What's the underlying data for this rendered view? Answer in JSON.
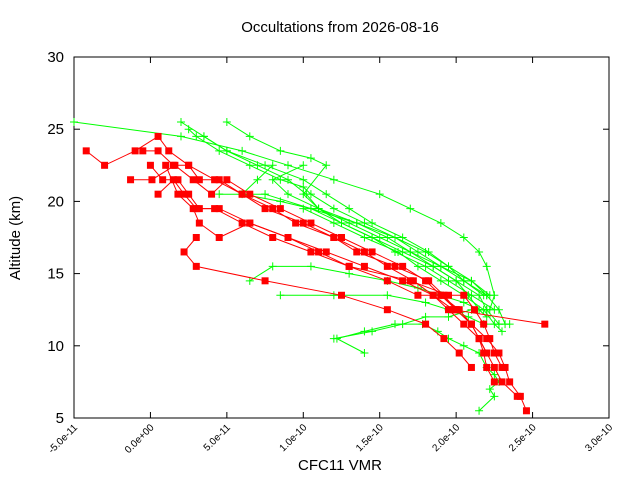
{
  "chart_data": {
    "type": "line",
    "title": "Occultations from 2026-08-16",
    "xlabel": "CFC11 VMR",
    "ylabel": "Altitude (km)",
    "xlim": [
      -5e-11,
      3e-10
    ],
    "ylim": [
      5,
      30
    ],
    "x_ticks": [
      -5e-11,
      0,
      5e-11,
      1e-10,
      1.5e-10,
      2e-10,
      2.5e-10,
      3e-10
    ],
    "x_tick_labels": [
      "-5.0e-11",
      "0.0e+00",
      "5.0e-11",
      "1.0e-10",
      "1.5e-10",
      "2.0e-10",
      "2.5e-10",
      "3.0e-10"
    ],
    "y_ticks": [
      5,
      10,
      15,
      20,
      25,
      30
    ],
    "y_tick_labels": [
      "5",
      "10",
      "15",
      "20",
      "25",
      "30"
    ],
    "grid": false,
    "legend": "none",
    "series": [
      {
        "style": "red-squares",
        "color": "#ff0000",
        "marker": "square",
        "x": [
          2.46e-10,
          2.42e-10,
          2.35e-10,
          2.32e-10,
          2.28e-10,
          2.2e-10,
          2.1e-10,
          2e-10,
          1.92e-10,
          1.82e-10,
          1.6e-10,
          1.35e-10,
          1.2e-10,
          1e-10,
          7.5e-11,
          6e-11,
          4.2e-11,
          2.5e-11,
          1.2e-11,
          5e-12,
          -1e-11,
          -3e-11,
          -4.2e-11
        ],
        "y": [
          5.5,
          6.5,
          7.5,
          8.5,
          9.5,
          10.5,
          11.5,
          12.5,
          13.5,
          14.5,
          15.5,
          16.5,
          17.5,
          18.5,
          19.5,
          20.5,
          21.5,
          22.5,
          23.5,
          24.5,
          23.5,
          22.5,
          23.5
        ]
      },
      {
        "style": "red-squares",
        "color": "#ff0000",
        "marker": "square",
        "x": [
          2.4e-10,
          2.3e-10,
          2.25e-10,
          2.2e-10,
          2.15e-10,
          2.05e-10,
          1.95e-10,
          1.85e-10,
          1.72e-10,
          1.55e-10,
          1.4e-10,
          1.2e-10,
          9.5e-11,
          8e-11,
          6e-11,
          4.5e-11,
          3.2e-11,
          2.5e-11,
          1.5e-11,
          5e-12,
          -5e-12
        ],
        "y": [
          6.5,
          7.5,
          8.5,
          9.5,
          10.5,
          11.5,
          12.5,
          13.5,
          14.5,
          15.5,
          16.5,
          17.5,
          18.5,
          19.5,
          20.5,
          21.5,
          21.5,
          22.5,
          22.5,
          23.5,
          23.5
        ]
      },
      {
        "style": "red-squares",
        "color": "#ff0000",
        "marker": "square",
        "x": [
          2.25e-10,
          2.2e-10,
          2.18e-10,
          2.15e-10,
          2.1e-10,
          2.02e-10,
          1.9e-10,
          1.8e-10,
          1.65e-10,
          1.45e-10,
          1.25e-10,
          1.05e-10,
          8.5e-11,
          6.5e-11,
          5e-11,
          4e-11,
          2.8e-11,
          1.6e-11,
          1e-12,
          -1.3e-11
        ],
        "y": [
          7.5,
          8.5,
          9.5,
          10.5,
          11.5,
          12.5,
          13.5,
          14.5,
          15.5,
          16.5,
          17.5,
          18.5,
          19.5,
          20.5,
          21.5,
          20.5,
          21.5,
          22.5,
          21.5,
          21.5
        ]
      },
      {
        "style": "red-squares",
        "color": "#ff0000",
        "marker": "square",
        "x": [
          2.3e-10,
          2.25e-10,
          2.22e-10,
          2.18e-10,
          2.12e-10,
          2.05e-10,
          1.95e-10,
          1.7e-10,
          1.3e-10,
          1.1e-10,
          9e-11,
          6.5e-11,
          4.5e-11,
          3.2e-11,
          2.5e-11,
          1.8e-11,
          8e-12,
          0
        ],
        "y": [
          8.5,
          9.5,
          10.5,
          11.5,
          12.5,
          13.5,
          13.5,
          14.5,
          15.5,
          16.5,
          17.5,
          18.5,
          19.5,
          19.5,
          20.5,
          21.5,
          21.5,
          22.5
        ]
      },
      {
        "style": "red-squares",
        "color": "#ff0000",
        "marker": "square",
        "x": [
          2.2e-10,
          2.15e-10,
          2.1e-10,
          2e-10,
          1.9e-10,
          1.75e-10,
          1.55e-10,
          1.3e-10,
          1.05e-10,
          8e-11,
          6e-11,
          4.2e-11,
          3e-11,
          2.2e-11,
          1.5e-11,
          5e-12
        ],
        "y": [
          9.5,
          10.5,
          11.5,
          12.5,
          13.5,
          13.5,
          14.5,
          15.5,
          16.5,
          17.5,
          18.5,
          19.5,
          19.5,
          20.5,
          21.5,
          20.5
        ]
      },
      {
        "style": "red-squares",
        "color": "#ff0000",
        "marker": "square",
        "x": [
          2.58e-10,
          1.98e-10,
          1.85e-10,
          1.65e-10,
          1.4e-10,
          1.15e-10,
          9e-11,
          6.5e-11,
          4.5e-11,
          3.2e-11,
          2.8e-11,
          1.8e-11,
          1e-11
        ],
        "y": [
          11.5,
          12.5,
          13.5,
          14.5,
          15.5,
          16.5,
          17.5,
          18.5,
          17.5,
          18.5,
          19.5,
          20.5,
          22.5
        ]
      },
      {
        "style": "red-squares",
        "color": "#ff0000",
        "marker": "square",
        "x": [
          2.1e-10,
          2.02e-10,
          1.92e-10,
          1.8e-10,
          1.55e-10,
          1.25e-10,
          7.5e-11,
          3e-11,
          2.2e-11,
          3e-11
        ],
        "y": [
          8.5,
          9.5,
          10.5,
          11.5,
          12.5,
          13.5,
          14.5,
          15.5,
          16.5,
          17.5
        ]
      },
      {
        "style": "green-crosses",
        "color": "#00ff00",
        "marker": "plus",
        "x": [
          -5e-11,
          2e-11,
          6e-11,
          9e-11,
          1.2e-10,
          1.5e-10,
          1.7e-10,
          1.9e-10,
          2.05e-10,
          2.15e-10,
          2.2e-10,
          2.25e-10,
          2.22e-10
        ],
        "y": [
          25.5,
          24.5,
          23.5,
          22.5,
          21.5,
          20.5,
          19.5,
          18.5,
          17.5,
          16.5,
          15.5,
          13.5,
          12.5
        ]
      },
      {
        "style": "green-crosses",
        "color": "#00ff00",
        "marker": "plus",
        "x": [
          5e-11,
          6.5e-11,
          8.5e-11,
          1.05e-10,
          1.15e-10,
          1e-10,
          1.1e-10,
          1.3e-10,
          1.5e-10,
          1.7e-10,
          1.9e-10,
          2.1e-10,
          2.2e-10,
          2.28e-10,
          2.32e-10
        ],
        "y": [
          25.5,
          24.5,
          23.5,
          23.0,
          22.5,
          20.5,
          19.5,
          18.5,
          17.5,
          16.5,
          15.5,
          14.5,
          13.5,
          12.5,
          11.5
        ]
      },
      {
        "style": "green-crosses",
        "color": "#00ff00",
        "marker": "plus",
        "x": [
          2e-11,
          3.5e-11,
          5e-11,
          7e-11,
          9e-11,
          1.02e-10,
          1.1e-10,
          1.25e-10,
          1.45e-10,
          1.65e-10,
          1.85e-10,
          2e-10,
          2.08e-10,
          2.15e-10
        ],
        "y": [
          25.5,
          24.5,
          23.5,
          22.5,
          21.5,
          20.5,
          19.5,
          18.5,
          17.5,
          16.5,
          15.5,
          14.5,
          13.5,
          12.5
        ]
      },
      {
        "style": "green-crosses",
        "color": "#00ff00",
        "marker": "plus",
        "x": [
          2.5e-11,
          3e-11,
          4.5e-11,
          6.5e-11,
          8.5e-11,
          1e-10,
          1.05e-10,
          1.2e-10,
          1.4e-10,
          1.6e-10,
          1.75e-10,
          1.9e-10,
          2.05e-10,
          2.2e-10
        ],
        "y": [
          25.0,
          24.5,
          23.5,
          22.5,
          21.5,
          21.0,
          20.5,
          19.5,
          18.5,
          17.5,
          16.5,
          15.5,
          14.5,
          13.5
        ]
      },
      {
        "style": "green-crosses",
        "color": "#00ff00",
        "marker": "plus",
        "x": [
          3.5e-11,
          5e-11,
          7.5e-11,
          1e-10,
          1.15e-10,
          1.3e-10,
          1.45e-10,
          1.65e-10,
          1.82e-10,
          1.95e-10,
          2.1e-10,
          2.22e-10
        ],
        "y": [
          24.5,
          23.5,
          22.5,
          21.5,
          20.5,
          19.5,
          18.5,
          17.5,
          16.5,
          15.5,
          14.5,
          13.5
        ]
      },
      {
        "style": "green-crosses",
        "color": "#00ff00",
        "marker": "plus",
        "x": [
          8e-11,
          7e-11,
          6e-11,
          8.5e-11,
          1.05e-10,
          1.25e-10,
          1.45e-10,
          1.6e-10,
          1.8e-10,
          1.95e-10,
          2.1e-10,
          2.25e-10
        ],
        "y": [
          22.5,
          21.5,
          20.5,
          20.0,
          19.5,
          18.5,
          17.5,
          16.5,
          15.5,
          14.5,
          13.5,
          12.5
        ]
      },
      {
        "style": "green-crosses",
        "color": "#00ff00",
        "marker": "plus",
        "x": [
          1e-10,
          8e-11,
          9e-11,
          1.1e-10,
          1.35e-10,
          1.55e-10,
          1.7e-10,
          1.85e-10,
          2e-10,
          2.15e-10,
          2.2e-10
        ],
        "y": [
          22.5,
          21.5,
          20.5,
          19.5,
          18.5,
          17.5,
          16.5,
          15.5,
          14.5,
          13.5,
          12.5
        ]
      },
      {
        "style": "green-crosses",
        "color": "#00ff00",
        "marker": "plus",
        "x": [
          1e-10,
          1.2e-10,
          1.4e-10,
          1.62e-10,
          1.75e-10,
          1.9e-10,
          2.05e-10,
          2.18e-10,
          2.25e-10,
          2.3e-10
        ],
        "y": [
          19.5,
          18.5,
          17.5,
          16.5,
          15.5,
          14.5,
          13.5,
          12.5,
          11.5,
          11.0
        ]
      },
      {
        "style": "green-crosses",
        "color": "#00ff00",
        "marker": "plus",
        "x": [
          4.5e-11,
          7.5e-11,
          1.05e-10,
          1.35e-10,
          1.6e-10,
          1.8e-10,
          1.95e-10,
          2.05e-10,
          2.18e-10
        ],
        "y": [
          20.5,
          20.5,
          19.5,
          18.5,
          17.5,
          16.5,
          15.5,
          14.5,
          13.5
        ]
      },
      {
        "style": "green-crosses",
        "color": "#00ff00",
        "marker": "plus",
        "x": [
          6.5e-11,
          8e-11,
          1.05e-10,
          1.3e-10,
          1.55e-10,
          1.75e-10,
          1.9e-10,
          2.05e-10,
          2.15e-10,
          2.2e-10
        ],
        "y": [
          14.5,
          15.5,
          15.5,
          15.0,
          14.5,
          14.0,
          13.5,
          13.0,
          12.5,
          12.0
        ]
      },
      {
        "style": "green-crosses",
        "color": "#00ff00",
        "marker": "plus",
        "x": [
          8.5e-11,
          1.2e-10,
          1.55e-10,
          1.8e-10,
          1.95e-10,
          2.08e-10,
          2.18e-10,
          2.28e-10,
          2.35e-10
        ],
        "y": [
          13.5,
          13.5,
          13.5,
          13.0,
          12.5,
          12.0,
          11.5,
          11.5,
          11.5
        ]
      },
      {
        "style": "green-crosses",
        "color": "#00ff00",
        "marker": "plus",
        "x": [
          1.2e-10,
          1.45e-10,
          1.65e-10,
          1.8e-10,
          1.95e-10,
          2.1e-10,
          2.2e-10,
          2.28e-10
        ],
        "y": [
          10.5,
          11.0,
          11.5,
          12.0,
          12.0,
          12.5,
          12.5,
          11.5
        ]
      },
      {
        "style": "green-crosses",
        "color": "#00ff00",
        "marker": "plus",
        "x": [
          1.4e-10,
          1.22e-10,
          1.4e-10,
          1.6e-10,
          1.78e-10,
          1.88e-10,
          1.95e-10,
          2.05e-10,
          2.15e-10,
          2.2e-10,
          2.25e-10,
          2.28e-10,
          2.22e-10,
          2.25e-10,
          2.15e-10
        ],
        "y": [
          9.5,
          10.5,
          11.0,
          11.5,
          11.5,
          11.0,
          10.5,
          10.0,
          9.5,
          8.5,
          8.0,
          7.5,
          7.0,
          6.5,
          5.5
        ]
      }
    ]
  }
}
